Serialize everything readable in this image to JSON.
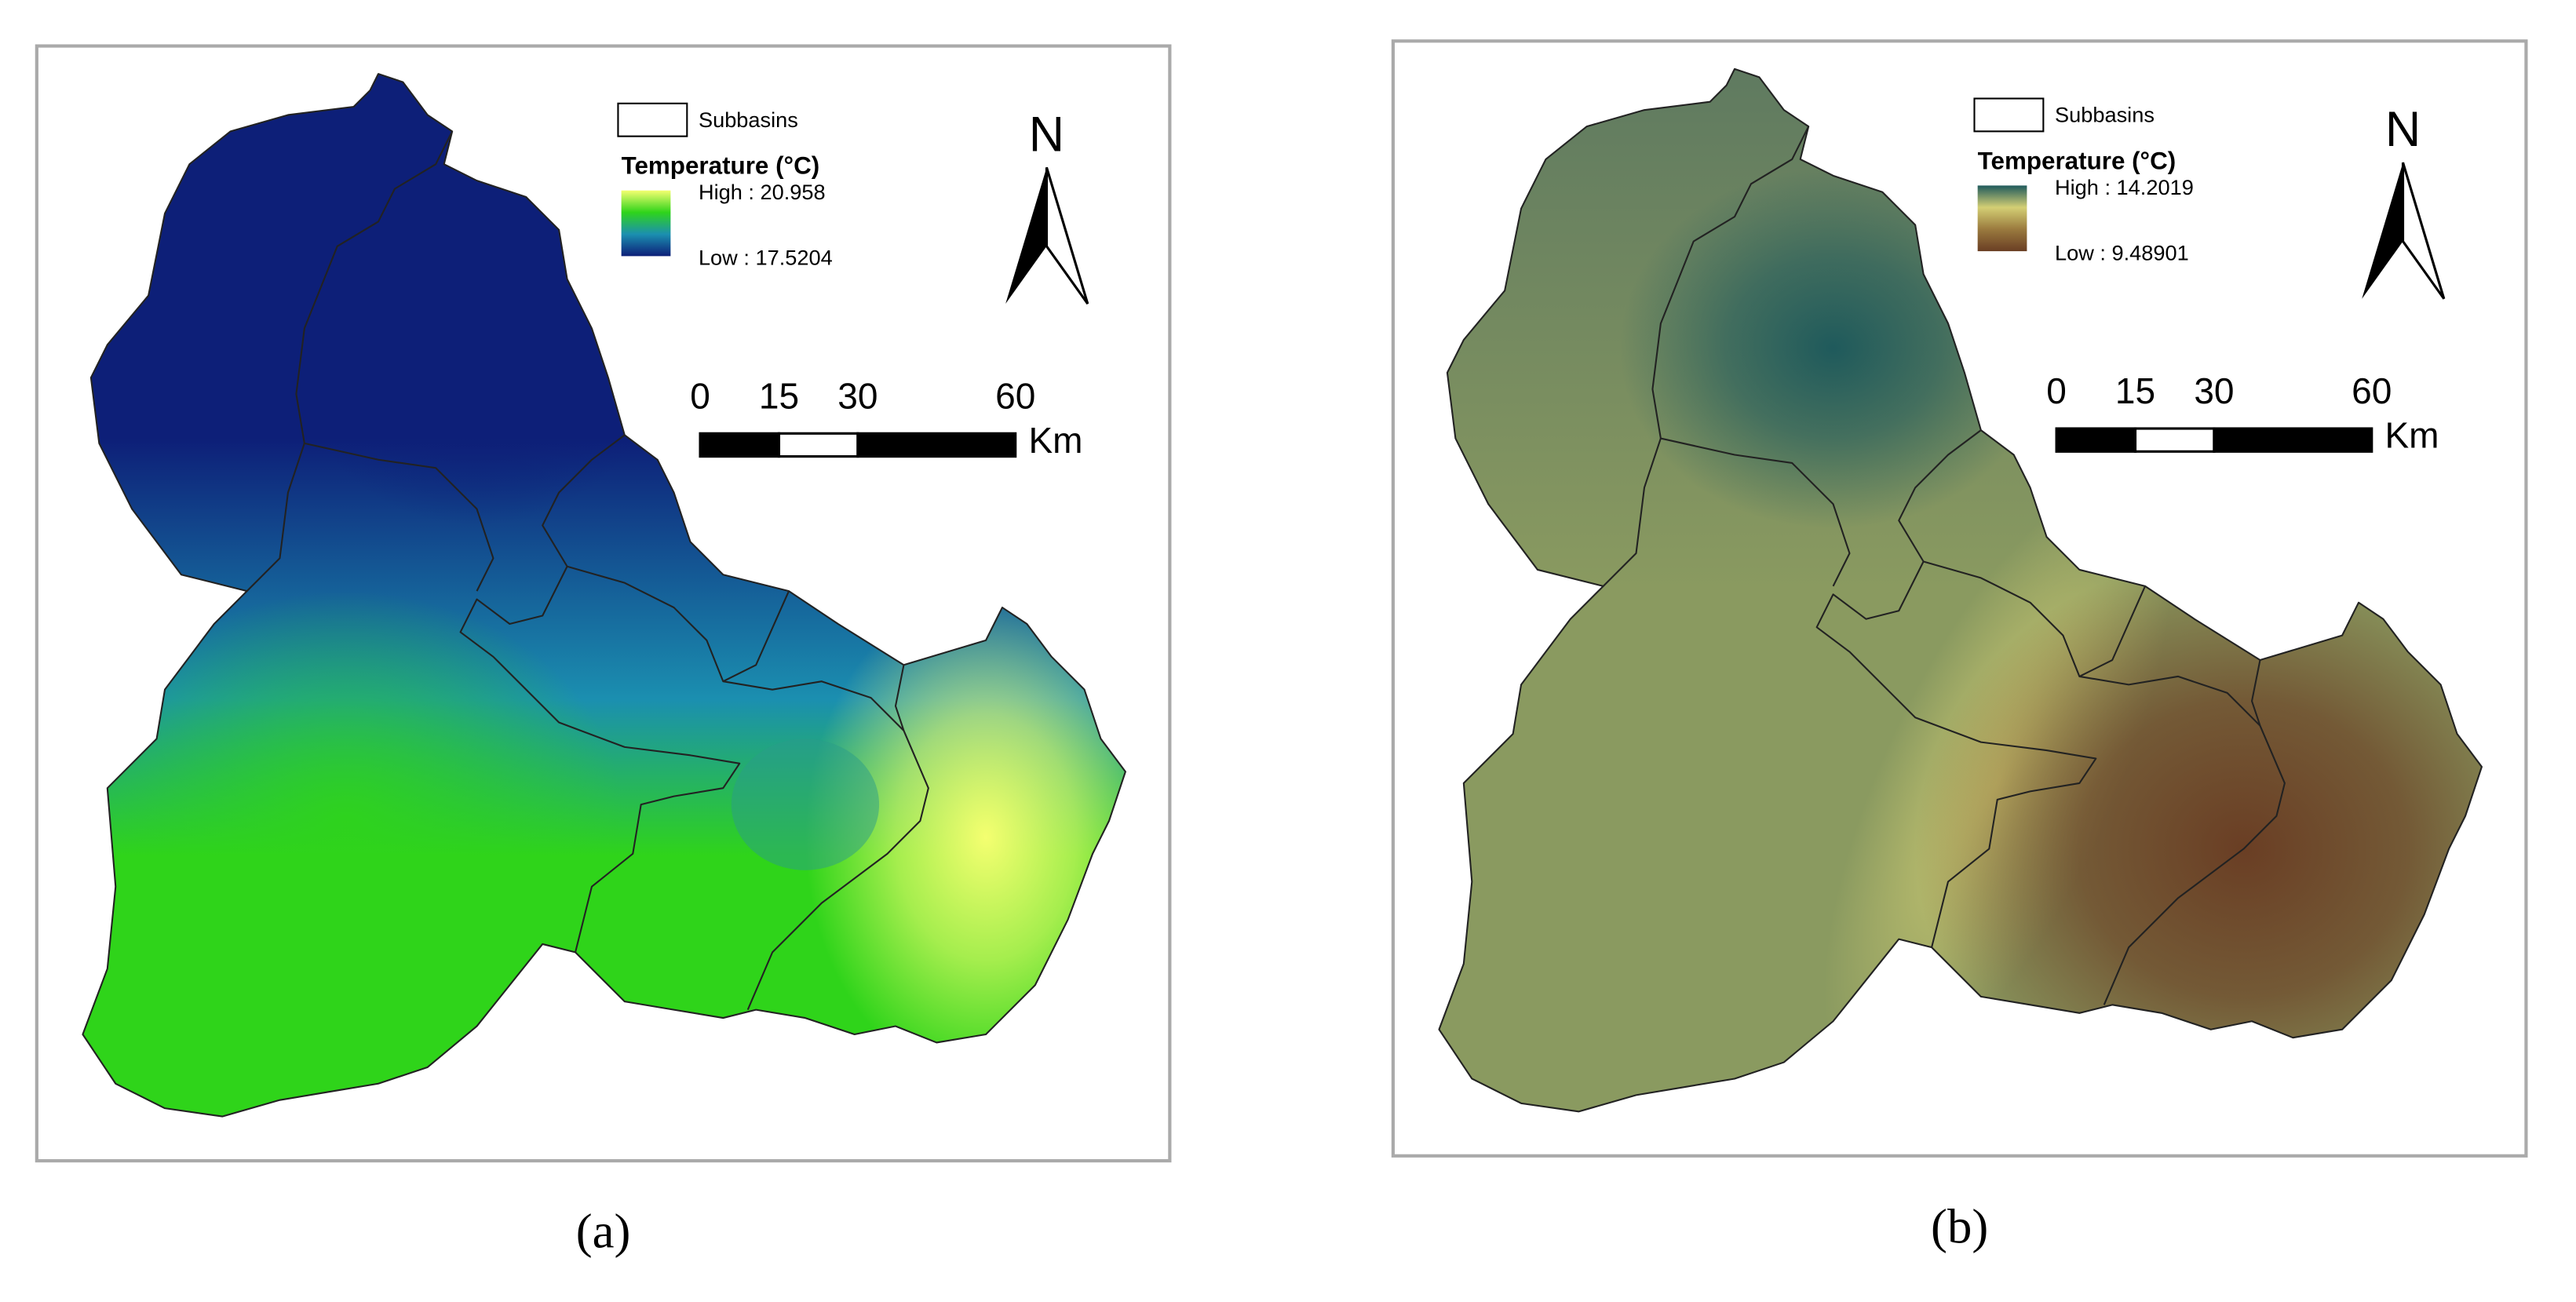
{
  "panels": [
    {
      "caption": "(a)",
      "north": "N",
      "legend": {
        "layer": "Subbasins",
        "title": "Temperature (°C)",
        "high": "High : 20.958",
        "low": "Low : 17.5204",
        "ramp": [
          "#f4ff70",
          "#2fd41a",
          "#1b8fb0",
          "#0d1f78"
        ]
      },
      "scale_bar": {
        "ticks": [
          0,
          15,
          30,
          60
        ],
        "unit": "Km"
      }
    },
    {
      "caption": "(b)",
      "north": "N",
      "legend": {
        "layer": "Subbasins",
        "title": "Temperature (°C)",
        "high": "High : 14.2019",
        "low": "Low : 9.48901",
        "ramp": [
          "#1f5a5c",
          "#d4cf74",
          "#9a7a3e",
          "#6a3e24"
        ]
      },
      "scale_bar": {
        "ticks": [
          0,
          15,
          30,
          60
        ],
        "unit": "Km"
      }
    }
  ]
}
